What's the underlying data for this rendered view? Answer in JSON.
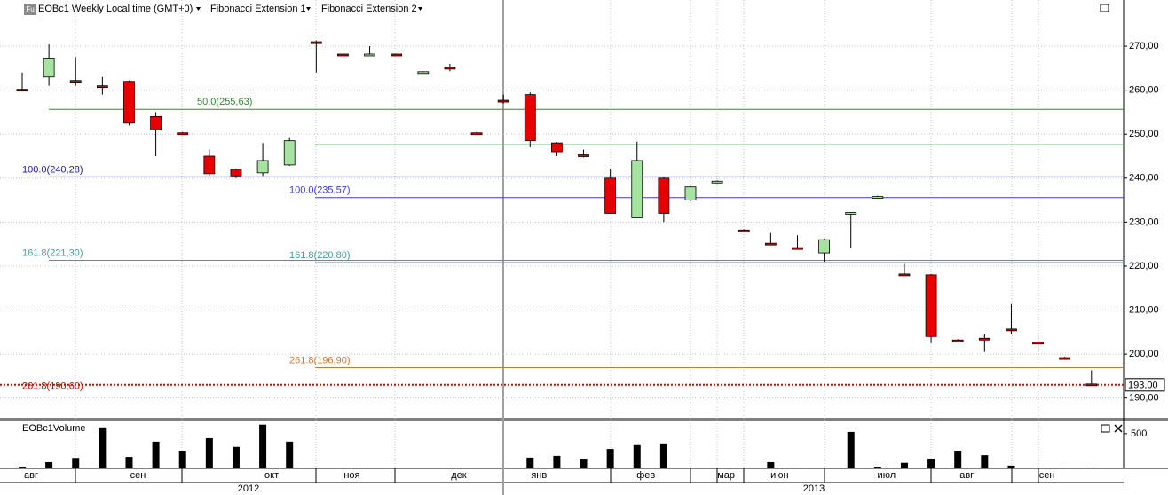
{
  "chart_data": {
    "type": "candlestick",
    "icon": "Fu",
    "title": "EOBc1 Weekly Local time (GMT+0)",
    "x": [
      "авг",
      null,
      null,
      null,
      "сен",
      null,
      null,
      null,
      null,
      "окт",
      null,
      null,
      "ноя",
      null,
      null,
      null,
      "дек",
      null,
      null,
      "янв",
      null,
      null,
      null,
      "фев",
      null,
      null,
      "мар",
      null,
      "июн",
      null,
      null,
      null,
      "июл",
      null,
      null,
      "авг",
      null,
      null,
      "сен",
      null,
      null
    ],
    "years": [
      "2012",
      "2013"
    ],
    "open": [
      260.2,
      263,
      262.2,
      261,
      262,
      254,
      250.3,
      245,
      242,
      241.2,
      243,
      271,
      268.2,
      268,
      268.2,
      264,
      265.2,
      250.3,
      257.7,
      259,
      248,
      245.3,
      240,
      231,
      240,
      235,
      239,
      228.2,
      225.2,
      224.2,
      223,
      232,
      235.5,
      218.2,
      218,
      203.2,
      203.6,
      205.7,
      202.7,
      199.2,
      193.2
    ],
    "high": [
      264,
      270.4,
      267.5,
      263,
      262.2,
      255,
      250.5,
      246.5,
      242.2,
      248,
      249.3,
      271.3,
      268.3,
      270,
      268.3,
      264.3,
      266,
      250.5,
      259,
      259.5,
      248.2,
      246.5,
      242,
      248.3,
      240.2,
      238.2,
      239.5,
      228.4,
      227.5,
      227,
      226.2,
      232.3,
      236,
      220.5,
      218.2,
      203.4,
      204.5,
      211.3,
      204.2,
      199.4,
      196.3
    ],
    "low": [
      259.7,
      261,
      261,
      259,
      252,
      245,
      249.8,
      240.5,
      240,
      240.5,
      242.8,
      264,
      267.9,
      267.8,
      267.9,
      263.8,
      264.3,
      249.9,
      257,
      247,
      245,
      244.7,
      232,
      231,
      230,
      234.8,
      238.8,
      227.8,
      224.8,
      223.8,
      221,
      224,
      235.3,
      217.8,
      202.5,
      202.8,
      200.5,
      204.5,
      201,
      198.8,
      192.9
    ],
    "close": [
      260,
      267.3,
      262,
      260.7,
      252.5,
      251,
      250,
      241,
      240.5,
      244,
      248.5,
      270.8,
      268,
      268.2,
      268,
      264.2,
      265,
      250.1,
      257.5,
      248.5,
      246,
      245,
      232,
      244,
      232,
      238,
      239.3,
      228,
      225,
      224,
      226,
      232.2,
      235.8,
      218,
      204,
      203,
      203.3,
      205.4,
      202.4,
      199,
      193
    ],
    "up_color": "#a6e3a0",
    "down_color": "#e60000",
    "ylim": [
      185.7,
      280.5
    ],
    "yticks": [
      {
        "value": 190,
        "label": "190,00"
      },
      {
        "value": 200,
        "label": "200,00"
      },
      {
        "value": 210,
        "label": "210,00"
      },
      {
        "value": 220,
        "label": "220,00"
      },
      {
        "value": 230,
        "label": "230,00"
      },
      {
        "value": 240,
        "label": "240,00"
      },
      {
        "value": 250,
        "label": "250,00"
      },
      {
        "value": 260,
        "label": "260,00"
      },
      {
        "value": 270,
        "label": "270,00"
      }
    ],
    "grid": true,
    "last_price": {
      "value": 193,
      "label": "193,00",
      "color": "#d40000"
    },
    "fibonacci": [
      {
        "name": "Fibonacci Extension 1",
        "levels": [
          {
            "value": 255.63,
            "label": "50.0(255,63)",
            "color": "#2e8b2e"
          },
          {
            "value": 240.28,
            "label": "100.0(240,28)",
            "color": "#1a1a9c"
          },
          {
            "value": 221.3,
            "label": "161.8(221,30)",
            "color": "#4a9a9a"
          },
          {
            "value": 190.6,
            "label": "261.8(190,60)",
            "color": "#d40000"
          }
        ]
      },
      {
        "name": "Fibonacci Extension 2",
        "levels": [
          {
            "value": 247.6,
            "color": "#5aaa5a"
          },
          {
            "value": 235.57,
            "label": "100.0(235,57)",
            "color": "#3a3ae0"
          },
          {
            "value": 220.8,
            "label": "161.8(220,80)",
            "color": "#4a9a9a"
          },
          {
            "value": 196.9,
            "label": "261.8(196,90)",
            "color": "#c8783a"
          }
        ]
      }
    ],
    "volume": {
      "name": "EOBc1Volume",
      "color": "#000000",
      "values": [
        25,
        90,
        150,
        590,
        165,
        385,
        255,
        435,
        310,
        630,
        385,
        0,
        0,
        0,
        0,
        0,
        0,
        0,
        10,
        155,
        180,
        140,
        280,
        335,
        360,
        0,
        0,
        0,
        90,
        10,
        0,
        525,
        25,
        80,
        140,
        255,
        190,
        40,
        0,
        10,
        10
      ],
      "ylim": [
        0,
        690
      ],
      "yticks": [
        500
      ]
    }
  }
}
